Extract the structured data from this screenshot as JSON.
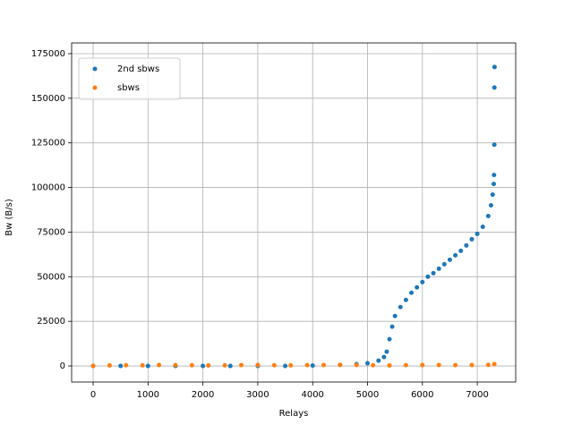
{
  "chart_data": {
    "type": "scatter",
    "xlabel": "Relays",
    "ylabel": "Bw (B/s)",
    "xlim": [
      -392,
      7700
    ],
    "ylim": [
      -9000,
      181000
    ],
    "xticks": [
      0,
      1000,
      2000,
      3000,
      4000,
      5000,
      6000,
      7000
    ],
    "yticks": [
      0,
      25000,
      50000,
      75000,
      100000,
      125000,
      150000,
      175000
    ],
    "grid": true,
    "legend": "upper left",
    "series": [
      {
        "name": "2nd sbws",
        "color": "#1f77b4",
        "x": [
          0,
          500,
          1000,
          1500,
          2000,
          2500,
          3000,
          3500,
          4000,
          4500,
          4800,
          5000,
          5200,
          5300,
          5350,
          5400,
          5450,
          5500,
          5600,
          5700,
          5800,
          5900,
          6000,
          6100,
          6200,
          6300,
          6400,
          6500,
          6600,
          6700,
          6800,
          6900,
          7000,
          7100,
          7200,
          7250,
          7280,
          7300,
          7305,
          7310,
          7312,
          7315
        ],
        "values": [
          0,
          0,
          0,
          0,
          0,
          0,
          0,
          0,
          200,
          600,
          1000,
          1500,
          3000,
          5000,
          8000,
          15000,
          22000,
          28000,
          33000,
          37000,
          41000,
          44000,
          47000,
          50000,
          52000,
          54500,
          57000,
          59500,
          62000,
          64500,
          67500,
          71000,
          74000,
          78000,
          84000,
          90000,
          96000,
          102000,
          107000,
          124000,
          156000,
          167500
        ]
      },
      {
        "name": "sbws",
        "color": "#ff7f0e",
        "x": [
          0,
          300,
          600,
          900,
          1200,
          1500,
          1800,
          2100,
          2400,
          2700,
          3000,
          3300,
          3600,
          3900,
          4200,
          4500,
          4800,
          5100,
          5400,
          5700,
          6000,
          6300,
          6600,
          6900,
          7200,
          7310
        ],
        "values": [
          0,
          300,
          400,
          350,
          500,
          450,
          400,
          300,
          350,
          450,
          500,
          400,
          350,
          450,
          500,
          600,
          550,
          400,
          300,
          450,
          500,
          550,
          450,
          500,
          600,
          1000
        ]
      }
    ]
  }
}
